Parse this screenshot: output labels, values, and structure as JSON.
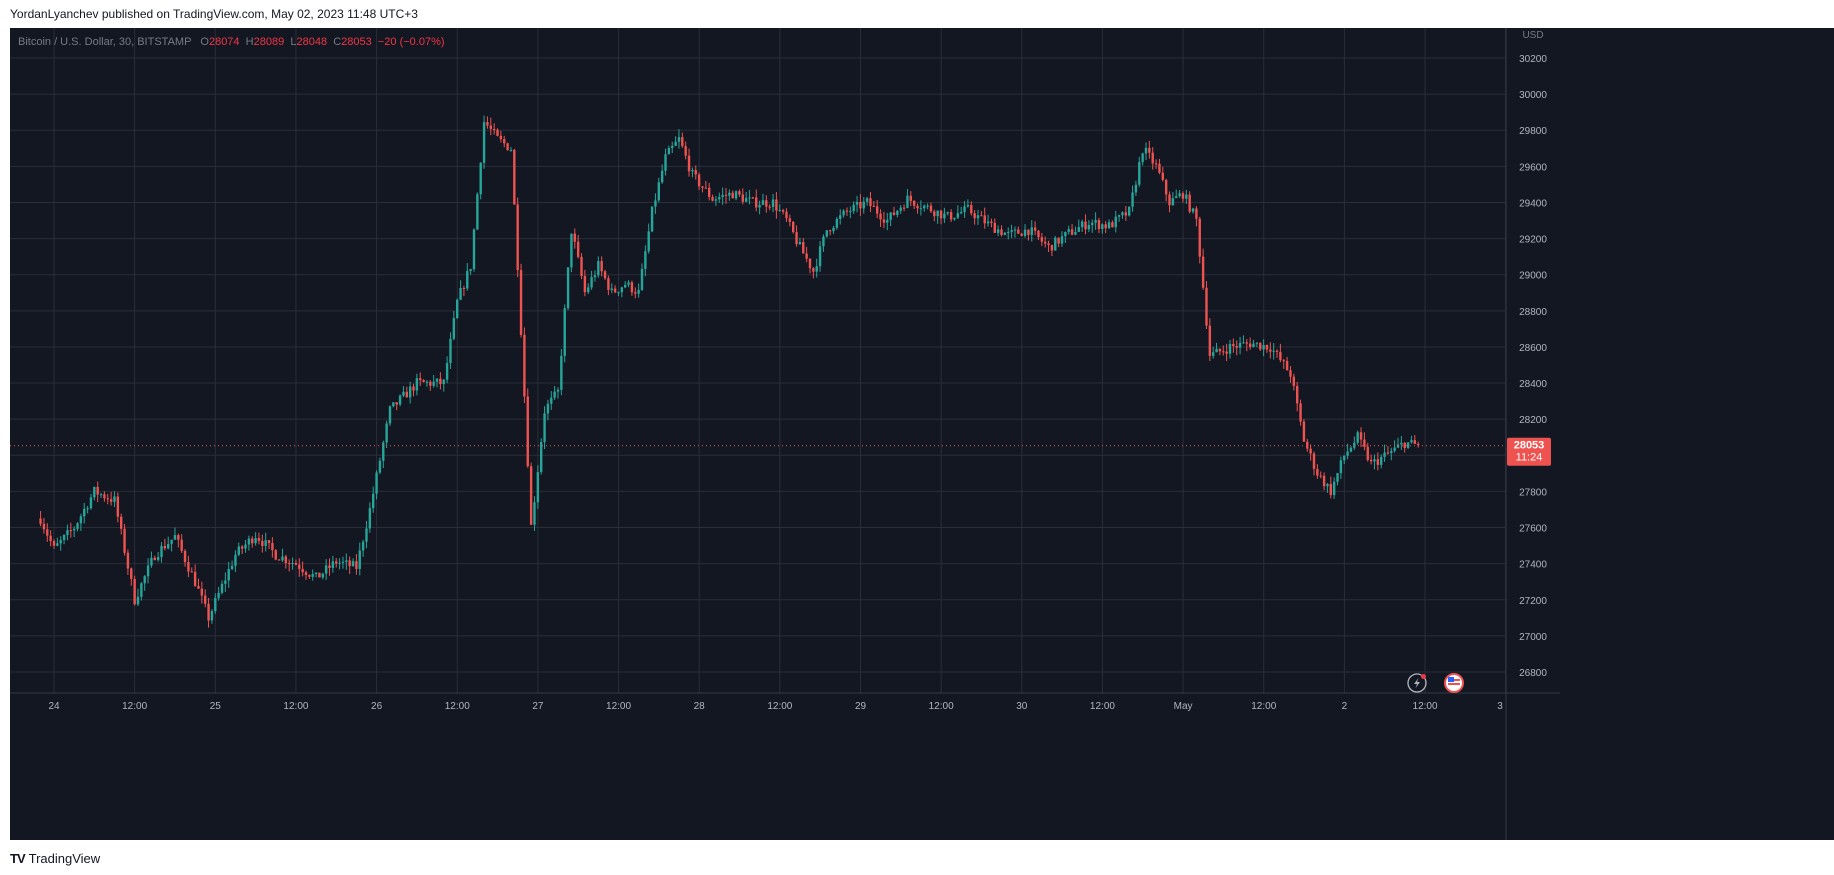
{
  "header": {
    "publish_line": "YordanLyanchev published on TradingView.com, May 02, 2023 11:48 UTC+3"
  },
  "legend": {
    "symbol": "Bitcoin / U.S. Dollar, 30, BITSTAMP",
    "o_label": "O",
    "o": "28074",
    "h_label": "H",
    "h": "28089",
    "l_label": "L",
    "l": "28048",
    "c_label": "C",
    "c": "28053",
    "change": "−20 (−0.07%)"
  },
  "axis": {
    "currency": "USD",
    "price_ticks": [
      "30200",
      "30000",
      "29800",
      "29600",
      "29400",
      "29200",
      "29000",
      "28800",
      "28600",
      "28400",
      "28200",
      "28000",
      "27800",
      "27600",
      "27400",
      "27200",
      "27000",
      "26800"
    ],
    "time_ticks": [
      "24",
      "12:00",
      "25",
      "12:00",
      "26",
      "12:00",
      "27",
      "12:00",
      "28",
      "12:00",
      "29",
      "12:00",
      "30",
      "12:00",
      "May",
      "12:00",
      "2",
      "12:00",
      "3"
    ]
  },
  "price_tag": {
    "price": "28053",
    "countdown": "11:24"
  },
  "footer": {
    "brand": "TradingView"
  },
  "colors": {
    "background": "#131722",
    "up": "#26a69a",
    "down": "#ef5350",
    "grid": "#363a45",
    "text": "#b2b5be"
  },
  "icons": [
    "lightning-icon",
    "us-flag-icon",
    "tradingview-logo-icon"
  ],
  "chart_data": {
    "type": "candlestick",
    "title": "Bitcoin / U.S. Dollar, 30, BITSTAMP",
    "interval": "30",
    "ylim": [
      26800,
      30300
    ],
    "y_unit": "USD",
    "last_price": 28053,
    "grid": true,
    "close_path": [
      [
        "2023-04-23 22:00",
        27650
      ],
      [
        "2023-04-24 00:00",
        27480
      ],
      [
        "2023-04-24 03:00",
        27600
      ],
      [
        "2023-04-24 06:00",
        27800
      ],
      [
        "2023-04-24 09:00",
        27750
      ],
      [
        "2023-04-24 12:00",
        27200
      ],
      [
        "2023-04-24 15:00",
        27450
      ],
      [
        "2023-04-24 18:00",
        27550
      ],
      [
        "2023-04-24 21:00",
        27300
      ],
      [
        "2023-04-24 23:00",
        27100
      ],
      [
        "2023-04-25 03:00",
        27450
      ],
      [
        "2023-04-25 06:00",
        27560
      ],
      [
        "2023-04-25 09:00",
        27450
      ],
      [
        "2023-04-25 12:00",
        27400
      ],
      [
        "2023-04-25 15:00",
        27320
      ],
      [
        "2023-04-25 18:00",
        27410
      ],
      [
        "2023-04-25 21:00",
        27380
      ],
      [
        "2023-04-25 23:00",
        27700
      ],
      [
        "2023-04-26 02:00",
        28250
      ],
      [
        "2023-04-26 06:00",
        28400
      ],
      [
        "2023-04-26 10:00",
        28400
      ],
      [
        "2023-04-26 12:00",
        28850
      ],
      [
        "2023-04-26 14:00",
        29050
      ],
      [
        "2023-04-26 16:00",
        29850
      ],
      [
        "2023-04-26 18:00",
        29750
      ],
      [
        "2023-04-26 20:00",
        29700
      ],
      [
        "2023-04-26 21:00",
        29050
      ],
      [
        "2023-04-26 23:00",
        27600
      ],
      [
        "2023-04-27 01:00",
        28250
      ],
      [
        "2023-04-27 03:00",
        28350
      ],
      [
        "2023-04-27 05:00",
        29250
      ],
      [
        "2023-04-27 07:00",
        28900
      ],
      [
        "2023-04-27 09:00",
        29050
      ],
      [
        "2023-04-27 11:00",
        28900
      ],
      [
        "2023-04-27 13:00",
        28950
      ],
      [
        "2023-04-27 15:00",
        28900
      ],
      [
        "2023-04-27 17:00",
        29350
      ],
      [
        "2023-04-27 19:00",
        29650
      ],
      [
        "2023-04-27 21:00",
        29750
      ],
      [
        "2023-04-27 23:00",
        29550
      ],
      [
        "2023-04-28 02:00",
        29420
      ],
      [
        "2023-04-28 05:00",
        29450
      ],
      [
        "2023-04-28 08:00",
        29400
      ],
      [
        "2023-04-28 11:00",
        29400
      ],
      [
        "2023-04-28 13:00",
        29300
      ],
      [
        "2023-04-28 15:00",
        29150
      ],
      [
        "2023-04-28 17:00",
        29020
      ],
      [
        "2023-04-28 19:00",
        29250
      ],
      [
        "2023-04-28 22:00",
        29350
      ],
      [
        "2023-04-29 01:00",
        29400
      ],
      [
        "2023-04-29 04:00",
        29300
      ],
      [
        "2023-04-29 07:00",
        29420
      ],
      [
        "2023-04-29 10:00",
        29370
      ],
      [
        "2023-04-29 13:00",
        29320
      ],
      [
        "2023-04-29 16:00",
        29360
      ],
      [
        "2023-04-29 19:00",
        29280
      ],
      [
        "2023-04-29 22:00",
        29220
      ],
      [
        "2023-04-30 01:00",
        29250
      ],
      [
        "2023-04-30 04:00",
        29150
      ],
      [
        "2023-04-30 07:00",
        29230
      ],
      [
        "2023-04-30 10:00",
        29290
      ],
      [
        "2023-04-30 13:00",
        29270
      ],
      [
        "2023-04-30 16:00",
        29350
      ],
      [
        "2023-04-30 18:00",
        29700
      ],
      [
        "2023-04-30 20:00",
        29600
      ],
      [
        "2023-04-30 22:00",
        29400
      ],
      [
        "2023-05-01 00:00",
        29450
      ],
      [
        "2023-05-01 02:00",
        29300
      ],
      [
        "2023-05-01 04:00",
        28550
      ],
      [
        "2023-05-01 07:00",
        28600
      ],
      [
        "2023-05-01 10:00",
        28620
      ],
      [
        "2023-05-01 13:00",
        28600
      ],
      [
        "2023-05-01 16:00",
        28450
      ],
      [
        "2023-05-01 18:00",
        28080
      ],
      [
        "2023-05-01 20:00",
        27900
      ],
      [
        "2023-05-01 22:00",
        27800
      ],
      [
        "2023-05-02 00:00",
        28000
      ],
      [
        "2023-05-02 02:00",
        28100
      ],
      [
        "2023-05-02 04:00",
        27950
      ],
      [
        "2023-05-02 07:00",
        28020
      ],
      [
        "2023-05-02 09:00",
        28070
      ],
      [
        "2023-05-02 11:00",
        28053
      ]
    ]
  }
}
